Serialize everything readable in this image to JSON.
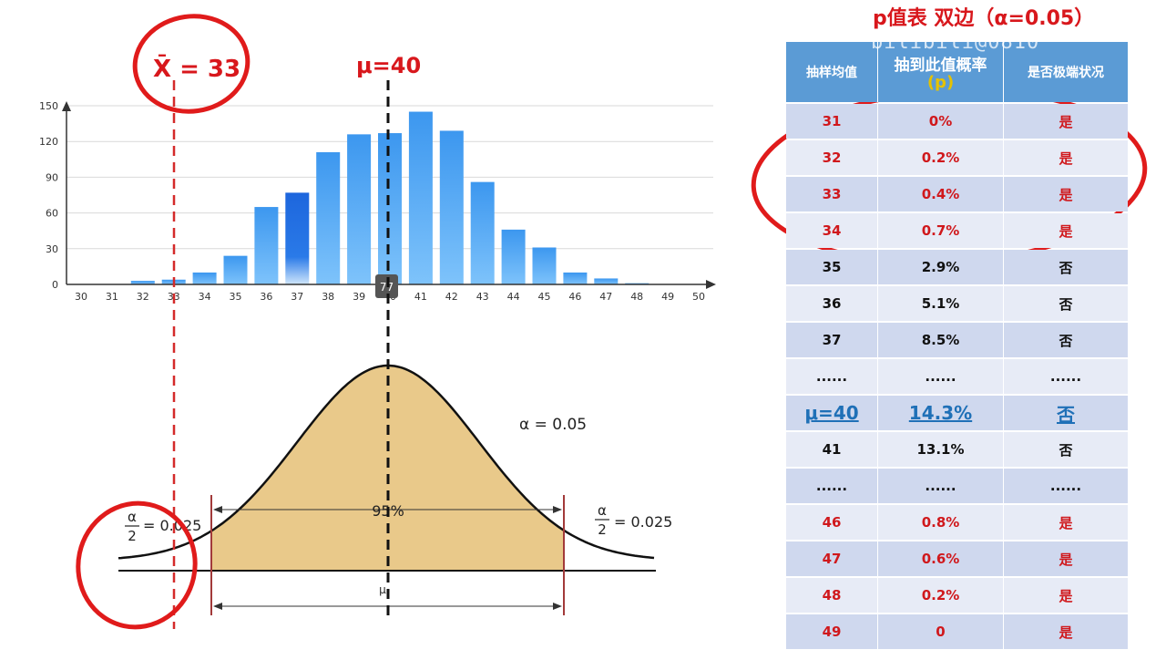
{
  "annotations": {
    "xbar_label": "X̄ = 33",
    "mu_label": "μ=40",
    "hover_value": "77"
  },
  "chart_data": [
    {
      "type": "bar",
      "categories": [
        "30",
        "31",
        "32",
        "33",
        "34",
        "35",
        "36",
        "37",
        "38",
        "39",
        "40",
        "41",
        "42",
        "43",
        "44",
        "45",
        "46",
        "47",
        "48",
        "49",
        "50"
      ],
      "values": [
        0,
        0,
        3,
        4,
        10,
        24,
        65,
        77,
        111,
        126,
        127,
        145,
        129,
        86,
        46,
        31,
        10,
        5,
        1,
        0,
        0
      ],
      "highlighted_category": "37",
      "yticks": [
        "0",
        "30",
        "60",
        "90",
        "120",
        "150"
      ],
      "ylim": [
        0,
        150
      ],
      "grid": true,
      "colors": {
        "bar": "#3d9cf0",
        "bar_highlight": "#1f6fe0"
      }
    },
    {
      "type": "area",
      "description_curve": "normal distribution",
      "labels": {
        "alpha": "α = 0.05",
        "center": "95%",
        "mean_tick": "μ",
        "half_alpha_left": "= 0.025",
        "half_alpha_right": "= 0.025",
        "frac_num": "α",
        "frac_den": "2"
      },
      "colors": {
        "fill": "#e9c98a",
        "curve": "#111111",
        "bound": "#a23a3a"
      }
    }
  ],
  "ptable": {
    "title": "p值表 双边（α=0.05）",
    "watermark": "bilibili@0810",
    "headers": [
      "抽样均值",
      "抽到此值概率",
      "是否极端状况"
    ],
    "header_p": "(p)",
    "rows": [
      {
        "c1": "31",
        "c2": "0%",
        "c3": "是",
        "style": "red odd"
      },
      {
        "c1": "32",
        "c2": "0.2%",
        "c3": "是",
        "style": "red even"
      },
      {
        "c1": "33",
        "c2": "0.4%",
        "c3": "是",
        "style": "red odd"
      },
      {
        "c1": "34",
        "c2": "0.7%",
        "c3": "是",
        "style": "red even"
      },
      {
        "c1": "35",
        "c2": "2.9%",
        "c3": "否",
        "style": "odd"
      },
      {
        "c1": "36",
        "c2": "5.1%",
        "c3": "否",
        "style": "even"
      },
      {
        "c1": "37",
        "c2": "8.5%",
        "c3": "否",
        "style": "odd"
      },
      {
        "c1": "......",
        "c2": "......",
        "c3": "......",
        "style": "even"
      },
      {
        "c1": "μ=40",
        "c2": "14.3%",
        "c3": "否",
        "style": "mu odd"
      },
      {
        "c1": "41",
        "c2": "13.1%",
        "c3": "否",
        "style": "even"
      },
      {
        "c1": "......",
        "c2": "......",
        "c3": "......",
        "style": "odd"
      },
      {
        "c1": "46",
        "c2": "0.8%",
        "c3": "是",
        "style": "red even"
      },
      {
        "c1": "47",
        "c2": "0.6%",
        "c3": "是",
        "style": "red odd"
      },
      {
        "c1": "48",
        "c2": "0.2%",
        "c3": "是",
        "style": "red even"
      },
      {
        "c1": "49",
        "c2": "0",
        "c3": "是",
        "style": "red odd"
      }
    ]
  }
}
